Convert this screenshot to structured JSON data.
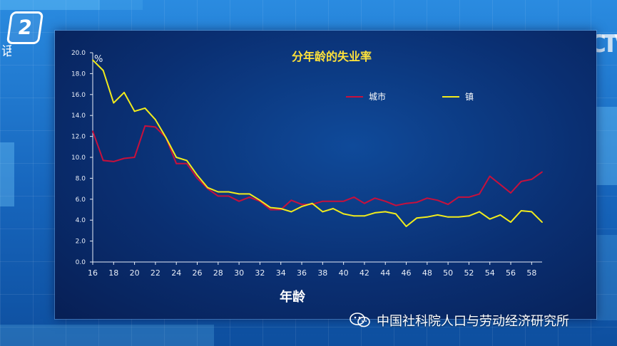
{
  "badge": {
    "number": "2"
  },
  "side_text": "话",
  "logo_text": "CCTV",
  "watermark": {
    "text": "中国社科院人口与劳动经济研究所",
    "icon": "wechat-icon"
  },
  "colors": {
    "city": "#c8103c",
    "town": "#f2ec1c",
    "axis": "#e8eef8",
    "title": "#ffe23a",
    "background": "#0a2f72"
  },
  "chart_data": {
    "type": "line",
    "title": "分年龄的失业率",
    "xlabel": "年龄",
    "ylabel": "%",
    "xlim": [
      16,
      59
    ],
    "ylim": [
      0,
      20
    ],
    "x_ticks": [
      16,
      18,
      20,
      22,
      24,
      26,
      28,
      30,
      32,
      34,
      36,
      38,
      40,
      42,
      44,
      46,
      48,
      50,
      52,
      54,
      56,
      58
    ],
    "y_ticks": [
      "0.0",
      "2.0",
      "4.0",
      "6.0",
      "8.0",
      "10.0",
      "12.0",
      "14.0",
      "16.0",
      "18.0",
      "20.0"
    ],
    "grid": false,
    "legend_position": "top-right",
    "x": [
      16,
      17,
      18,
      19,
      20,
      21,
      22,
      23,
      24,
      25,
      26,
      27,
      28,
      29,
      30,
      31,
      32,
      33,
      34,
      35,
      36,
      37,
      38,
      39,
      40,
      41,
      42,
      43,
      44,
      45,
      46,
      47,
      48,
      49,
      50,
      51,
      52,
      53,
      54,
      55,
      56,
      57,
      58,
      59
    ],
    "series": [
      {
        "name": "城市",
        "color_key": "city",
        "values": [
          12.5,
          9.7,
          9.6,
          9.9,
          10.0,
          13.0,
          12.9,
          11.9,
          9.4,
          9.4,
          8.0,
          7.0,
          6.3,
          6.3,
          5.8,
          6.2,
          5.8,
          5.0,
          5.0,
          5.9,
          5.5,
          5.5,
          5.8,
          5.8,
          5.8,
          6.2,
          5.6,
          6.1,
          5.8,
          5.4,
          5.6,
          5.7,
          6.1,
          5.9,
          5.5,
          6.2,
          6.2,
          6.5,
          8.2,
          7.4,
          6.6,
          7.7,
          7.9,
          8.6
        ]
      },
      {
        "name": "镇",
        "color_key": "town",
        "values": [
          19.3,
          18.3,
          15.2,
          16.2,
          14.4,
          14.7,
          13.6,
          11.9,
          10.0,
          9.7,
          8.3,
          7.1,
          6.7,
          6.7,
          6.5,
          6.5,
          5.9,
          5.2,
          5.1,
          4.8,
          5.3,
          5.6,
          4.8,
          5.1,
          4.6,
          4.4,
          4.4,
          4.7,
          4.8,
          4.6,
          3.4,
          4.2,
          4.3,
          4.5,
          4.3,
          4.3,
          4.4,
          4.8,
          4.1,
          4.5,
          3.8,
          4.9,
          4.8,
          3.8
        ]
      }
    ]
  }
}
